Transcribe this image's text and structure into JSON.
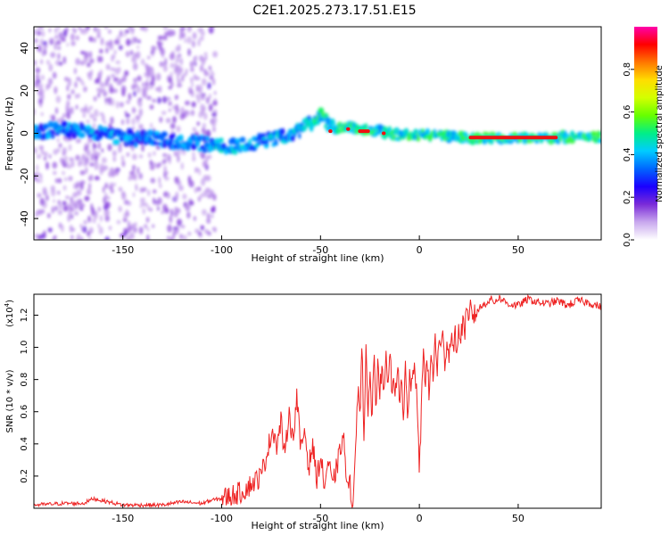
{
  "figure_title": "C2E1.2025.273.17.51.E15",
  "colorbar": {
    "label": "Normalized spectral amplitude",
    "ticks": [
      0.0,
      0.2,
      0.4,
      0.6,
      0.8
    ],
    "tick_labels": [
      "0.0",
      "0.2",
      "0.4",
      "0.6",
      "0.8"
    ],
    "range": [
      0,
      1
    ],
    "stops": [
      "#ffffff",
      "#c9a8ee",
      "#7a2bd8",
      "#1a00ff",
      "#0066ff",
      "#00ccff",
      "#00ee88",
      "#66ff00",
      "#d4ff00",
      "#ffdd00",
      "#ff7700",
      "#ff0000",
      "#ff00aa"
    ]
  },
  "chart_data": [
    {
      "type": "heatmap",
      "title": "",
      "xlabel": "Height of straight line (km)",
      "ylabel": "Frequency (Hz)",
      "xlim": [
        -195,
        92
      ],
      "ylim": [
        -50,
        50
      ],
      "xticks": [
        -150,
        -100,
        -50,
        0,
        50
      ],
      "xtick_labels": [
        "-150",
        "-100",
        "-50",
        "0",
        "50"
      ],
      "yticks": [
        -40,
        -20,
        0,
        20,
        40
      ],
      "ytick_labels": [
        "-40",
        "-20",
        "0",
        "20",
        "40"
      ],
      "center_frequency_trace": {
        "x": [
          -195,
          -170,
          -150,
          -130,
          -110,
          -100,
          -90,
          -80,
          -70,
          -60,
          -55,
          -50,
          -45,
          -40,
          -35,
          -30,
          -20,
          -10,
          0,
          10,
          20,
          40,
          60,
          80,
          92
        ],
        "y": [
          1,
          2,
          -2,
          -3,
          -5,
          -6,
          -6,
          -4,
          -2,
          2,
          5,
          8,
          3,
          2,
          3,
          2,
          1,
          -1,
          -1,
          -1,
          -2,
          -2,
          -2,
          -2,
          -2
        ]
      },
      "bright_segments": [
        {
          "x0": -46,
          "x1": -44,
          "y": 1
        },
        {
          "x0": -37,
          "x1": -35,
          "y": 2
        },
        {
          "x0": -31,
          "x1": -25,
          "y": 1
        },
        {
          "x0": -19,
          "x1": -17,
          "y": 0
        },
        {
          "x0": 25,
          "x1": 70,
          "y": -2
        }
      ],
      "scatter_region_x": [
        -195,
        -103
      ],
      "colorbar_range": [
        0,
        1
      ]
    },
    {
      "type": "line",
      "title": "",
      "xlabel": "Height of straight line (km)",
      "ylabel": "SNR (10 * v/v)",
      "y_exponent_label": "(x10",
      "y_exponent_power": "4",
      "y_exponent_close": ")",
      "xlim": [
        -195,
        92
      ],
      "ylim": [
        0,
        1.33
      ],
      "xticks": [
        -150,
        -100,
        -50,
        0,
        50
      ],
      "xtick_labels": [
        "-150",
        "-100",
        "-50",
        "0",
        "50"
      ],
      "yticks": [
        0.2,
        0.4,
        0.6,
        0.8,
        1.0,
        1.2
      ],
      "ytick_labels": [
        "0.2",
        "0.4",
        "0.6",
        "0.8",
        "1.0",
        "1.2"
      ],
      "series": [
        {
          "name": "SNR",
          "color": "#ee2222",
          "x": [
            -195,
            -180,
            -170,
            -165,
            -150,
            -130,
            -120,
            -110,
            -105,
            -100,
            -95,
            -90,
            -85,
            -80,
            -77,
            -74,
            -72,
            -70,
            -68,
            -66,
            -64,
            -62,
            -60,
            -58,
            -56,
            -54,
            -52,
            -50,
            -48,
            -46,
            -44,
            -42,
            -40,
            -39,
            -38,
            -37,
            -36,
            -35,
            -34,
            -33,
            -32,
            -31,
            -30,
            -29,
            -28,
            -27,
            -26,
            -25,
            -24,
            -23,
            -22,
            -21,
            -20,
            -19,
            -18,
            -17,
            -16,
            -15,
            -14,
            -13,
            -12,
            -11,
            -10,
            -9,
            -8,
            -7,
            -6,
            -5,
            -4,
            -3,
            -2,
            -1,
            0,
            1,
            2,
            3,
            4,
            5,
            6,
            7,
            8,
            9,
            10,
            11,
            12,
            13,
            14,
            15,
            16,
            17,
            18,
            19,
            20,
            21,
            22,
            23,
            24,
            25,
            26,
            27,
            28,
            30,
            32,
            34,
            36,
            38,
            40,
            45,
            50,
            55,
            60,
            65,
            70,
            75,
            80,
            85,
            92
          ],
          "y": [
            0.02,
            0.03,
            0.03,
            0.06,
            0.02,
            0.02,
            0.04,
            0.03,
            0.05,
            0.06,
            0.08,
            0.1,
            0.15,
            0.2,
            0.35,
            0.5,
            0.38,
            0.55,
            0.3,
            0.62,
            0.42,
            0.7,
            0.35,
            0.5,
            0.25,
            0.4,
            0.18,
            0.32,
            0.14,
            0.3,
            0.12,
            0.25,
            0.35,
            0.45,
            0.4,
            0.2,
            0.1,
            0.15,
            0.05,
            0.12,
            0.45,
            0.8,
            0.6,
            1.05,
            0.4,
            0.95,
            0.55,
            0.92,
            0.5,
            0.98,
            0.6,
            1.0,
            0.7,
            0.9,
            0.65,
            0.95,
            0.68,
            1.02,
            0.75,
            0.85,
            0.7,
            0.95,
            0.6,
            0.8,
            0.5,
            0.92,
            0.55,
            0.8,
            0.72,
            0.9,
            0.85,
            0.6,
            0.22,
            0.6,
            1.0,
            0.8,
            0.9,
            0.68,
            1.0,
            0.75,
            1.1,
            0.85,
            1.05,
            0.95,
            1.15,
            0.88,
            1.05,
            0.92,
            1.12,
            0.95,
            1.08,
            1.0,
            1.1,
            1.05,
            1.18,
            1.1,
            1.22,
            1.12,
            1.28,
            1.2,
            1.2,
            1.24,
            1.26,
            1.28,
            1.3,
            1.28,
            1.31,
            1.27,
            1.26,
            1.3,
            1.28,
            1.27,
            1.29,
            1.26,
            1.29,
            1.28,
            1.25
          ]
        }
      ]
    }
  ]
}
